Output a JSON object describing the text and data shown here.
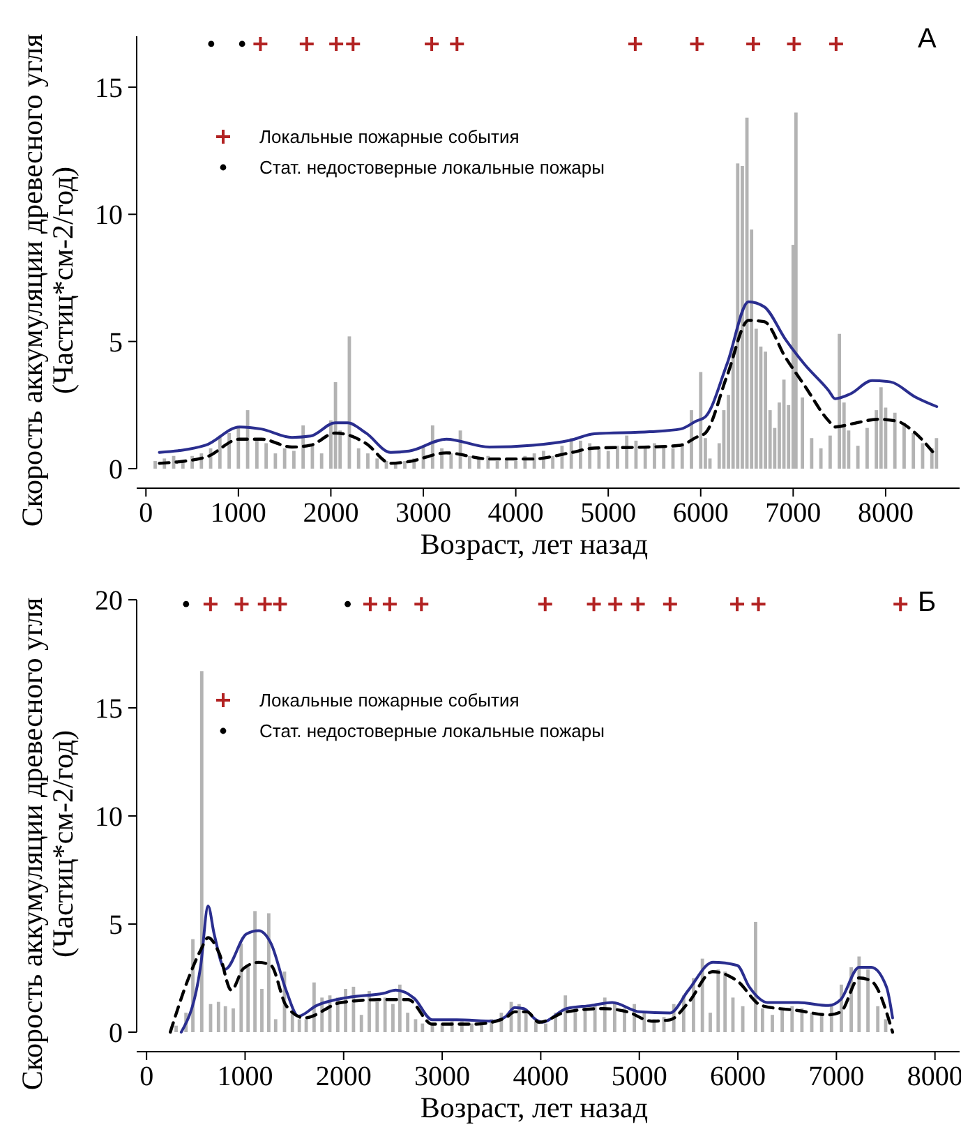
{
  "chart_data": [
    {
      "type": "bar",
      "xlabel": "Возраст, лет назад",
      "ylabel": "Скорость аккумуляции древесного угля\n(Частиц*см-2/год)",
      "annotations": [
        "А"
      ],
      "xlim": [
        -100,
        8800
      ],
      "ylim": [
        0,
        17
      ],
      "xticks": [
        0,
        1000,
        2000,
        3000,
        4000,
        5000,
        6000,
        7000,
        8000
      ],
      "yticks": [
        0,
        5,
        10,
        15
      ],
      "legend": "top left",
      "series": [
        {
          "color": "#b3b3b3",
          "x": [
            100,
            200,
            300,
            400,
            500,
            600,
            700,
            800,
            900,
            1000,
            1100,
            1200,
            1300,
            1400,
            1500,
            1600,
            1700,
            1800,
            1900,
            2000,
            2050,
            2100,
            2200,
            2300,
            2400,
            2500,
            2600,
            2700,
            2800,
            2900,
            3000,
            3100,
            3200,
            3300,
            3400,
            3500,
            3600,
            3700,
            3800,
            3900,
            4000,
            4100,
            4200,
            4300,
            4400,
            4500,
            4600,
            4700,
            4800,
            4900,
            5000,
            5100,
            5200,
            5300,
            5400,
            5500,
            5600,
            5700,
            5800,
            5900,
            6000,
            6050,
            6100,
            6200,
            6250,
            6300,
            6350,
            6400,
            6450,
            6500,
            6550,
            6600,
            6650,
            6700,
            6750,
            6800,
            6850,
            6900,
            6950,
            7000,
            7030,
            7100,
            7200,
            7300,
            7400,
            7500,
            7550,
            7600,
            7700,
            7800,
            7900,
            7950,
            8000,
            8100,
            8200,
            8300,
            8400,
            8500,
            8550
          ],
          "values": [
            0.3,
            0.4,
            0.5,
            0.3,
            0.5,
            0.6,
            0.8,
            1.3,
            1.4,
            1.6,
            2.3,
            1.2,
            1.0,
            0.6,
            0.8,
            0.7,
            1.7,
            0.9,
            0.6,
            1.9,
            3.4,
            1.5,
            5.2,
            0.8,
            0.6,
            0.4,
            0.3,
            0.2,
            0.3,
            0.4,
            0.9,
            1.7,
            0.8,
            0.6,
            1.5,
            0.5,
            0.4,
            0.5,
            0.3,
            0.4,
            0.3,
            0.5,
            0.6,
            0.7,
            0.5,
            0.9,
            1.2,
            1.1,
            1.0,
            0.8,
            0.7,
            0.9,
            1.3,
            1.1,
            0.8,
            1.0,
            0.9,
            0.8,
            1.0,
            2.3,
            3.8,
            1.2,
            0.4,
            1.0,
            2.3,
            2.9,
            4.8,
            12.0,
            11.9,
            13.8,
            9.4,
            5.5,
            4.8,
            4.6,
            2.3,
            1.6,
            2.6,
            3.5,
            2.5,
            8.8,
            14.0,
            2.8,
            1.2,
            0.8,
            1.3,
            5.3,
            2.6,
            1.5,
            0.9,
            1.6,
            2.3,
            3.2,
            2.4,
            2.2,
            1.8,
            1.4,
            1.0,
            0.8,
            1.2
          ]
        },
        {
          "type": "line",
          "color": "#2a2e8f",
          "marker": "none",
          "line_style": "solid",
          "x": [
            145,
            645,
            1012,
            1246,
            1580,
            1780,
            2047,
            2180,
            2380,
            2647,
            2847,
            3248,
            3715,
            4182,
            4583,
            4850,
            5450,
            5784,
            5951,
            6051,
            6285,
            6518,
            6685,
            6919,
            7119,
            7386,
            7452,
            7619,
            7853,
            8053,
            8320,
            8553
          ],
          "values": [
            0.64,
            0.92,
            1.64,
            1.56,
            1.23,
            1.28,
            1.8,
            1.8,
            1.4,
            0.64,
            0.69,
            1.16,
            0.85,
            0.92,
            1.11,
            1.37,
            1.45,
            1.56,
            1.87,
            2.04,
            4.12,
            6.56,
            6.37,
            5.07,
            4.12,
            3.06,
            2.75,
            2.94,
            3.46,
            3.41,
            2.82,
            2.44
          ]
        },
        {
          "type": "line",
          "color": "#000000",
          "marker": "none",
          "line_style": "dashed",
          "x": [
            145,
            645,
            1012,
            1246,
            1580,
            1780,
            2047,
            2180,
            2380,
            2647,
            2847,
            3248,
            3715,
            4182,
            4583,
            4850,
            5450,
            5784,
            5951,
            6051,
            6285,
            6518,
            6685,
            6919,
            7119,
            7386,
            7452,
            7619,
            7919,
            8119,
            8320,
            8519
          ],
          "values": [
            0.21,
            0.45,
            1.16,
            1.16,
            0.85,
            0.92,
            1.4,
            1.33,
            0.99,
            0.21,
            0.28,
            0.62,
            0.38,
            0.38,
            0.62,
            0.81,
            0.85,
            0.92,
            1.23,
            1.4,
            3.65,
            5.83,
            5.78,
            4.36,
            3.29,
            1.87,
            1.64,
            1.75,
            1.94,
            1.87,
            1.4,
            0.62
          ]
        },
        {
          "type": "scatter",
          "name": "Локальные пожарные события",
          "color": "#b22222",
          "marker": "cross",
          "x": [
            1238,
            1739,
            2058,
            2240,
            3091,
            3364,
            5292,
            5960,
            6568,
            7009,
            7464
          ],
          "values": [
            16.7,
            16.7,
            16.7,
            16.7,
            16.7,
            16.7,
            16.7,
            16.7,
            16.7,
            16.7,
            16.7
          ]
        },
        {
          "type": "scatter",
          "name": "Стат. недостоверные локальные пожары",
          "color": "#000000",
          "marker": "circle",
          "x": [
            706,
            1040
          ],
          "values": [
            16.7,
            16.7
          ]
        }
      ]
    },
    {
      "type": "bar",
      "xlabel": "Возраст, лет назад",
      "ylabel": "Скорость аккумуляции древесного угля\n(Частиц*см-2/год)",
      "annotations": [
        "Б"
      ],
      "xlim": [
        -100,
        8250
      ],
      "ylim": [
        0,
        20
      ],
      "xticks": [
        0,
        1000,
        2000,
        3000,
        4000,
        5000,
        6000,
        7000,
        8000
      ],
      "yticks": [
        0,
        5,
        10,
        15,
        20
      ],
      "legend": "top left",
      "series": [
        {
          "color": "#b3b3b3",
          "x": [
            300,
            400,
            470,
            560,
            650,
            730,
            800,
            880,
            960,
            1030,
            1100,
            1170,
            1240,
            1310,
            1400,
            1480,
            1550,
            1620,
            1700,
            1780,
            1860,
            1940,
            2020,
            2100,
            2180,
            2260,
            2340,
            2420,
            2500,
            2570,
            2650,
            2730,
            2800,
            2900,
            3000,
            3100,
            3200,
            3300,
            3400,
            3500,
            3600,
            3700,
            3780,
            3850,
            3950,
            4050,
            4150,
            4250,
            4350,
            4450,
            4550,
            4650,
            4750,
            4850,
            4950,
            5050,
            5150,
            5250,
            5350,
            5450,
            5550,
            5640,
            5720,
            5800,
            5870,
            5950,
            6050,
            6180,
            6250,
            6350,
            6450,
            6550,
            6650,
            6750,
            6850,
            6950,
            7050,
            7150,
            7230,
            7320,
            7420,
            7500
          ],
          "values": [
            0.3,
            0.9,
            4.3,
            16.7,
            1.3,
            1.4,
            1.2,
            1.1,
            4.1,
            3.0,
            5.6,
            2.0,
            5.5,
            0.6,
            2.8,
            1.0,
            0.6,
            0.6,
            2.3,
            1.6,
            1.7,
            1.6,
            2.0,
            2.1,
            0.8,
            1.9,
            1.4,
            1.6,
            1.3,
            2.2,
            0.9,
            0.6,
            0.4,
            0.4,
            0.4,
            0.5,
            0.5,
            0.4,
            0.5,
            0.6,
            0.9,
            1.4,
            1.3,
            0.9,
            0.5,
            0.4,
            0.9,
            1.7,
            1.1,
            1.0,
            1.3,
            1.6,
            1.4,
            1.1,
            1.3,
            0.9,
            0.6,
            0.7,
            1.3,
            1.7,
            2.5,
            3.4,
            0.9,
            2.9,
            2.8,
            1.6,
            1.2,
            5.1,
            1.1,
            0.8,
            1.0,
            1.2,
            1.1,
            0.9,
            0.8,
            1.3,
            2.2,
            3.0,
            3.5,
            2.9,
            1.2,
            0.6
          ]
        },
        {
          "type": "line",
          "color": "#2a2e8f",
          "marker": "none",
          "line_style": "solid",
          "x": [
            352,
            550,
            625,
            686,
            798,
            1014,
            1138,
            1262,
            1416,
            1540,
            1725,
            2035,
            2406,
            2529,
            2715,
            2900,
            3148,
            3519,
            3643,
            3735,
            3828,
            3952,
            4014,
            4261,
            4508,
            4725,
            5003,
            5312,
            5498,
            5745,
            5993,
            6116,
            6302,
            6611,
            6920,
            7044,
            7230,
            7353,
            7508,
            7570
          ],
          "values": [
            0,
            3.09,
            5.83,
            4.54,
            2.91,
            4.54,
            4.69,
            4.11,
            1.94,
            0.74,
            1.23,
            1.6,
            1.8,
            1.94,
            1.57,
            0.57,
            0.57,
            0.51,
            0.71,
            1.14,
            1.09,
            0.57,
            0.46,
            1.09,
            1.23,
            1.37,
            0.94,
            0.89,
            1.94,
            3.23,
            3.09,
            2.09,
            1.37,
            1.37,
            1.23,
            1.51,
            3.0,
            3.0,
            2.09,
            0.66
          ]
        },
        {
          "type": "line",
          "color": "#000000",
          "marker": "none",
          "line_style": "dashed",
          "x": [
            241,
            427,
            550,
            625,
            736,
            860,
            983,
            1138,
            1262,
            1416,
            1602,
            1973,
            2406,
            2653,
            2900,
            3333,
            3643,
            3735,
            3859,
            3983,
            4261,
            4632,
            4879,
            5127,
            5312,
            5498,
            5745,
            5993,
            6240,
            6611,
            6920,
            7044,
            7230,
            7353,
            7570
          ],
          "values": [
            0,
            2.51,
            3.8,
            4.37,
            3.66,
            1.94,
            2.94,
            3.23,
            3.09,
            1.23,
            0.66,
            1.37,
            1.51,
            1.51,
            0.37,
            0.37,
            0.66,
            0.94,
            0.94,
            0.46,
            0.94,
            1.09,
            0.94,
            0.51,
            0.57,
            1.37,
            2.8,
            2.37,
            1.23,
            1.0,
            0.8,
            0.94,
            2.51,
            2.37,
            0
          ]
        },
        {
          "type": "scatter",
          "name": "Локальные пожарные события",
          "color": "#b22222",
          "marker": "cross",
          "x": [
            649,
            965,
            1200,
            1354,
            2270,
            2468,
            2789,
            4045,
            4539,
            4756,
            4985,
            5312,
            5993,
            6209,
            7650
          ],
          "values": [
            19.8,
            19.8,
            19.8,
            19.8,
            19.8,
            19.8,
            19.8,
            19.8,
            19.8,
            19.8,
            19.8,
            19.8,
            19.8,
            19.8,
            19.8
          ]
        },
        {
          "type": "scatter",
          "name": "Стат. недостоверные локальные пожары",
          "color": "#000000",
          "marker": "circle",
          "x": [
            401,
            2041
          ],
          "values": [
            19.8,
            19.8
          ]
        }
      ]
    }
  ]
}
